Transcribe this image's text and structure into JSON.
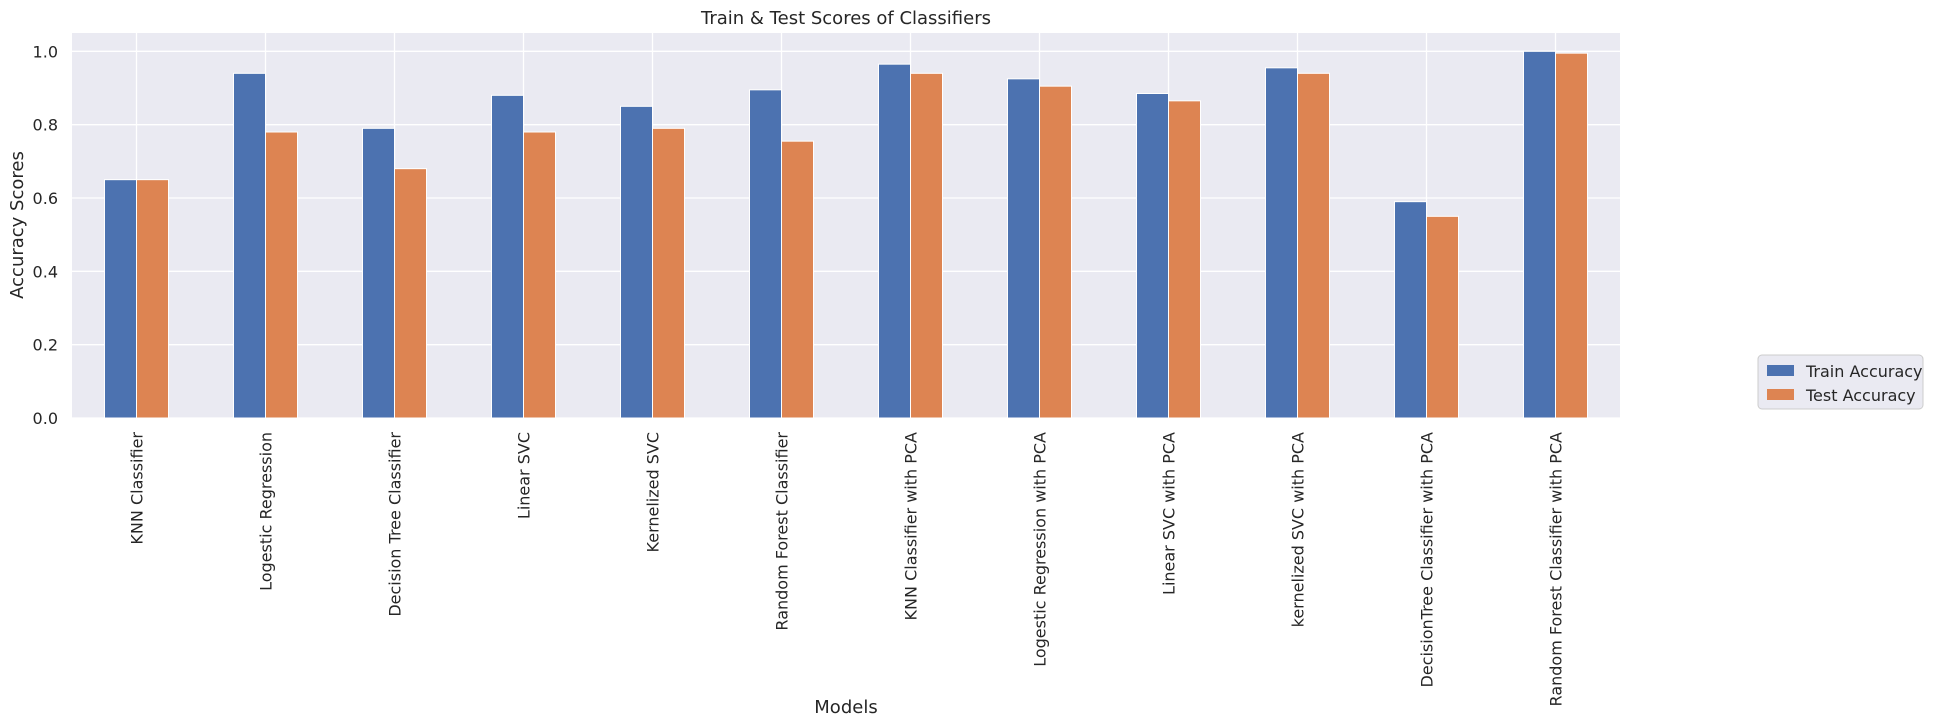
{
  "chart_data": {
    "type": "bar",
    "title": "Train & Test Scores of Classifiers",
    "xlabel": "Models",
    "ylabel": "Accuracy Scores",
    "ylim": [
      0,
      1.05
    ],
    "yticks": [
      "0.0",
      "0.2",
      "0.4",
      "0.6",
      "0.8",
      "1.0"
    ],
    "grid": true,
    "legend_position": "right",
    "categories": [
      "KNN Classifier",
      "Logestic Regression",
      "Decision Tree Classifier",
      "Linear SVC",
      "Kernelized SVC",
      "Random Forest Classifier",
      "KNN Classifier with PCA",
      "Logestic Regression with PCA",
      "Linear SVC with PCA",
      "kernelized SVC with PCA",
      "DecisionTree Classifier with PCA",
      "Random Forest Classifier with PCA"
    ],
    "series": [
      {
        "name": "Train Accuracy",
        "color": "#4c72b0",
        "values": [
          0.65,
          0.94,
          0.79,
          0.88,
          0.85,
          0.895,
          0.965,
          0.925,
          0.885,
          0.955,
          0.59,
          1.0
        ]
      },
      {
        "name": "Test Accuracy",
        "color": "#dd8452",
        "values": [
          0.65,
          0.78,
          0.68,
          0.78,
          0.79,
          0.755,
          0.94,
          0.905,
          0.865,
          0.94,
          0.55,
          0.995
        ]
      }
    ]
  },
  "colors": {
    "plot_background": "#eaeaf2",
    "grid": "#ffffff"
  }
}
